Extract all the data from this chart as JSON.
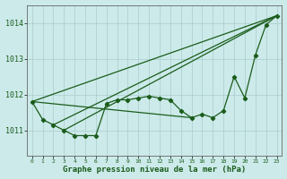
{
  "xlabel": "Graphe pression niveau de la mer (hPa)",
  "xlim": [
    -0.5,
    23.5
  ],
  "ylim": [
    1010.3,
    1014.5
  ],
  "yticks": [
    1011,
    1012,
    1013,
    1014
  ],
  "xticks": [
    0,
    1,
    2,
    3,
    4,
    5,
    6,
    7,
    8,
    9,
    10,
    11,
    12,
    13,
    14,
    15,
    16,
    17,
    18,
    19,
    20,
    21,
    22,
    23
  ],
  "background_color": "#cceaea",
  "grid_color": "#aacccc",
  "line_color": "#1a5c1a",
  "text_color": "#1a5c1a",
  "hours": [
    0,
    1,
    2,
    3,
    4,
    5,
    6,
    7,
    8,
    9,
    10,
    11,
    12,
    13,
    14,
    15,
    16,
    17,
    18,
    19,
    20,
    21,
    22,
    23
  ],
  "pressure": [
    1011.8,
    1011.3,
    1011.15,
    1011.0,
    1010.85,
    1010.85,
    1010.85,
    1011.75,
    1011.85,
    1011.85,
    1011.9,
    1011.95,
    1011.9,
    1011.85,
    1011.55,
    1011.35,
    1011.45,
    1011.35,
    1011.55,
    1012.5,
    1011.9,
    1013.1,
    1013.95,
    1014.2
  ],
  "trend_lines": [
    [
      0,
      1011.8,
      23,
      1014.2
    ],
    [
      2,
      1011.15,
      23,
      1014.2
    ],
    [
      3,
      1011.0,
      23,
      1014.2
    ],
    [
      0,
      1011.8,
      15,
      1011.35
    ]
  ]
}
